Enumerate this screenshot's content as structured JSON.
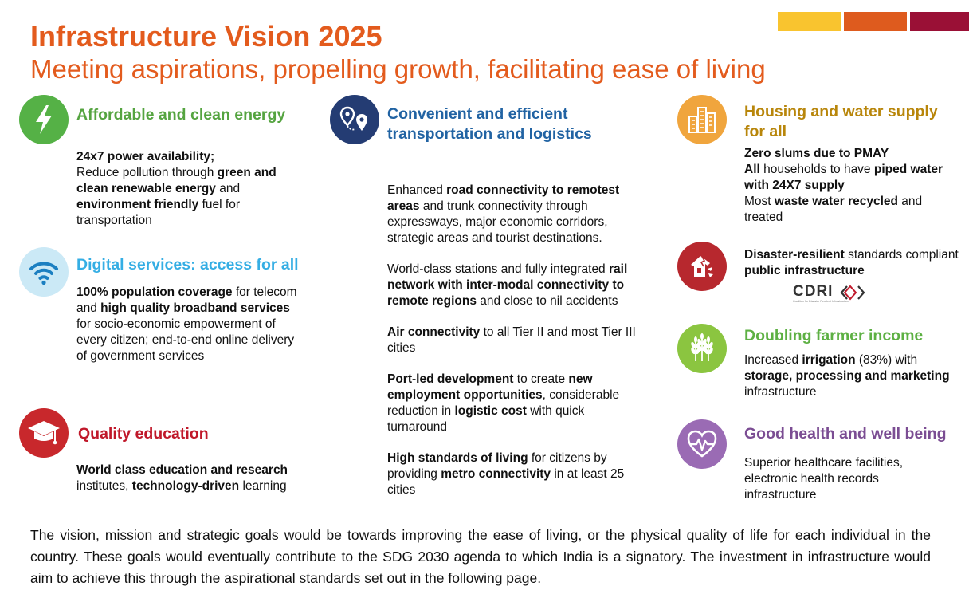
{
  "colors": {
    "title": "#E35B1D",
    "bar_yellow": "#F9C42F",
    "bar_orange": "#DE5B1E",
    "bar_maroon": "#9A1036"
  },
  "header": {
    "title": "Infrastructure Vision 2025",
    "subtitle": "Meeting aspirations, propelling growth, facilitating ease of living"
  },
  "energy": {
    "icon": "lightning-bolt-icon",
    "title": "Affordable and clean energy",
    "line1_b": "24x7 power availability;",
    "line2_a": "Reduce pollution through ",
    "line2_b": "green and clean renewable energy",
    "line2_c": " and ",
    "line2_d": "environment friendly",
    "line2_e": " fuel for transportation"
  },
  "digital": {
    "icon": "wifi-icon",
    "title": "Digital services: access for all",
    "b1": "100% population coverage",
    "t1": " for telecom and ",
    "b2": "high quality broadband services",
    "t2": " for socio-economic empowerment of every citizen; end-to-end online delivery of government services"
  },
  "education": {
    "icon": "graduation-cap-icon",
    "title": "Quality education",
    "b1": "World class education and research",
    "t1": " institutes, ",
    "b2": "technology-driven",
    "t2": " learning"
  },
  "transport": {
    "icon": "map-pins-icon",
    "title": "Convenient and efficient transportation and logistics",
    "p1_t1": "Enhanced ",
    "p1_b1": "road connectivity to remotest areas",
    "p1_t2": " and trunk connectivity through expressways, major economic corridors, strategic areas and tourist destinations.",
    "p2_t1": "World-class stations and fully integrated ",
    "p2_b1": "rail network with inter-modal connectivity to remote regions",
    "p2_t2": " and close to nil accidents",
    "p3_b1": "Air connectivity",
    "p3_t1": " to all Tier II and most Tier III cities",
    "p4_b1": "Port-led development",
    "p4_t1": " to create ",
    "p4_b2": "new employment opportunities",
    "p4_t2": ", considerable reduction in ",
    "p4_b3": "logistic cost",
    "p4_t3": " with quick turnaround",
    "p5_b1": "High standards of living",
    "p5_t1": " for citizens by providing ",
    "p5_b2": "metro connectivity",
    "p5_t2": " in at least 25 cities"
  },
  "housing": {
    "icon": "buildings-icon",
    "title": "Housing and water supply for all",
    "l1_b": "Zero slums due to PMAY",
    "l2_b1": "All",
    "l2_t1": " households to have ",
    "l2_b2": "piped water with 24X7 supply",
    "l3_t1": "Most ",
    "l3_b1": "waste water recycled",
    "l3_t2": " and treated"
  },
  "disaster": {
    "icon": "damaged-house-icon",
    "b1": "Disaster-resilient",
    "t1": " standards compliant ",
    "b2": "public infrastructure",
    "logo_text": "CDRI",
    "logo_sub": "Coalition for Disaster Resilient Infrastructure"
  },
  "farmer": {
    "icon": "wheat-icon",
    "title": "Doubling farmer income",
    "t1": "Increased ",
    "b1": "irrigation",
    "t2": " (83%) with ",
    "b2": "storage, processing and marketing",
    "t3": " infrastructure"
  },
  "health": {
    "icon": "heart-pulse-icon",
    "title": "Good health and well being",
    "text": "Superior healthcare facilities, electronic health records infrastructure"
  },
  "footer": {
    "text": "The vision, mission and strategic goals would be towards  improving the ease of living, or the physical quality of life for each individual in the country. These goals would eventually contribute to the SDG 2030 agenda to which India is a signatory. The investment in infrastructure would aim to achieve this through the aspirational standards set out in the following page."
  }
}
